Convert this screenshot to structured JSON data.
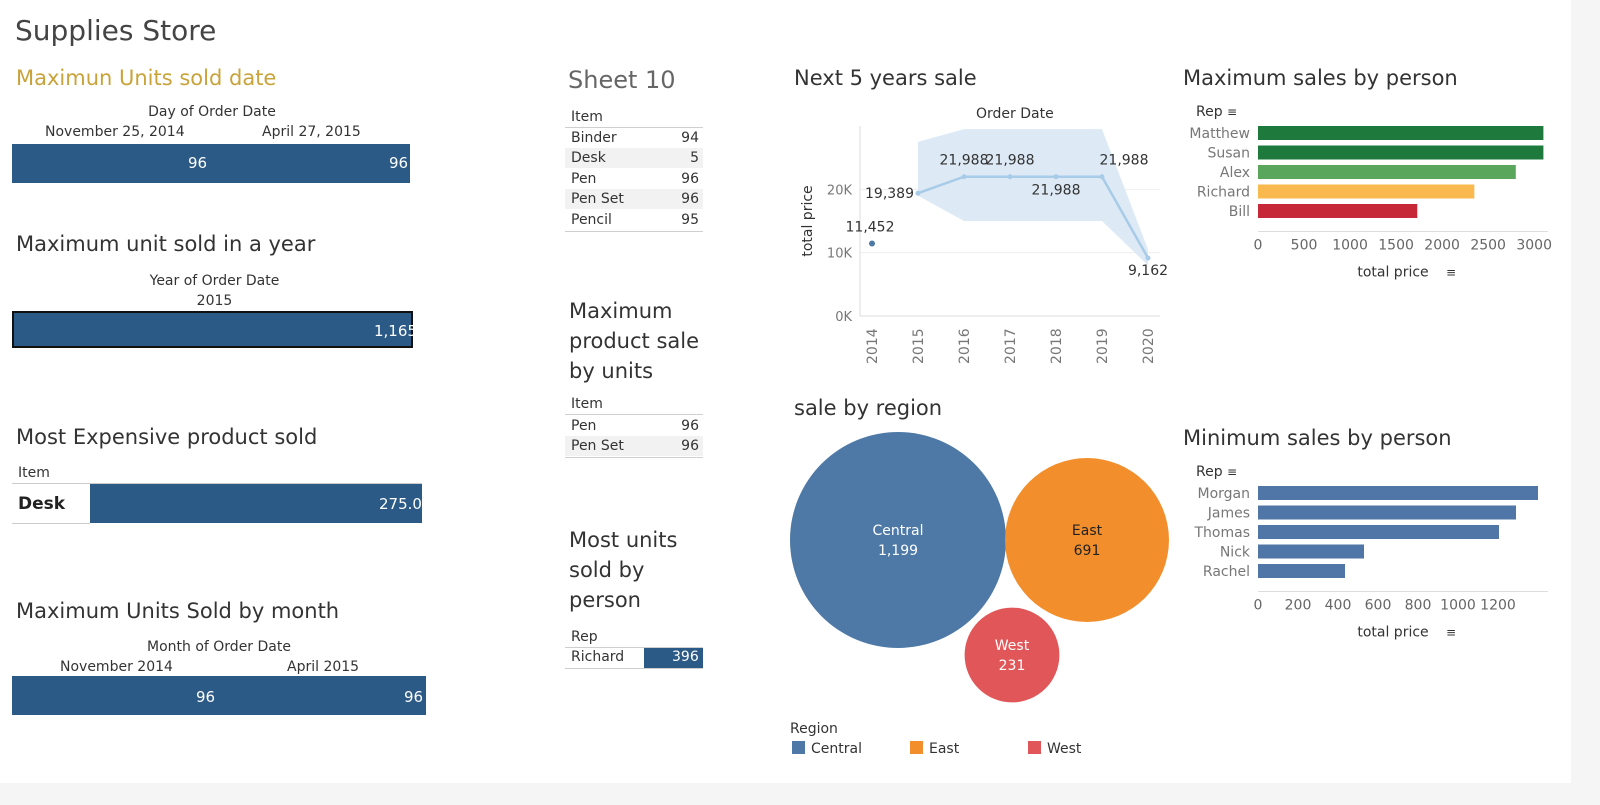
{
  "title": "Supplies Store",
  "units_date": {
    "title": "Maximun Units sold date",
    "header": "Day of Order Date",
    "columns": [
      "November 25, 2014",
      "April 27, 2015"
    ],
    "values": [
      "96",
      "96"
    ]
  },
  "unit_year": {
    "title": "Maximum unit sold in a year",
    "header": "Year of Order Date",
    "column": "2015",
    "value": "1,165"
  },
  "expensive": {
    "title": "Most Expensive product sold",
    "item_header": "Item",
    "item": "Desk",
    "value": "275.0"
  },
  "units_month": {
    "title": "Maximum Units Sold by month",
    "header": "Month of Order Date",
    "columns": [
      "November 2014",
      "April 2015"
    ],
    "values": [
      "96",
      "96"
    ]
  },
  "sheet10": {
    "title": "Sheet 10",
    "header": "Item",
    "rows": [
      {
        "item": "Binder",
        "value": "94"
      },
      {
        "item": "Desk",
        "value": "5"
      },
      {
        "item": "Pen",
        "value": "96"
      },
      {
        "item": "Pen Set",
        "value": "96"
      },
      {
        "item": "Pencil",
        "value": "95"
      }
    ]
  },
  "max_product": {
    "title": [
      "Maximum",
      "product sale",
      "by units"
    ],
    "header": "Item",
    "rows": [
      {
        "item": "Pen",
        "value": "96"
      },
      {
        "item": "Pen Set",
        "value": "96"
      }
    ]
  },
  "most_units": {
    "title": [
      "Most units",
      "sold by",
      "person"
    ],
    "header": "Rep",
    "rep": "Richard",
    "value": "396"
  },
  "chart_data": [
    {
      "type": "line",
      "title": "Next 5 years sale",
      "xlabel": "Order Date",
      "ylabel": "total price",
      "x": [
        "2014",
        "2015",
        "2016",
        "2017",
        "2018",
        "2019",
        "2020"
      ],
      "values": [
        11452,
        19389,
        21988,
        21988,
        21988,
        21988,
        9162
      ],
      "labels": [
        "11,452",
        "19,389",
        "21,988",
        "21,988",
        "21,988",
        "21,988",
        "9,162"
      ],
      "yticks": [
        "0K",
        "10K",
        "20K"
      ],
      "ylim": [
        0,
        30000
      ],
      "forecast_band_upper": [
        null,
        27500,
        29500,
        29500,
        29500,
        29500,
        10500
      ],
      "forecast_band_lower": [
        null,
        19000,
        15000,
        15000,
        15000,
        15000,
        8000
      ],
      "color": "#a8cbe8"
    },
    {
      "type": "bar",
      "title": "Maximum sales by person",
      "xlabel": "total price",
      "ylabel": "Rep",
      "categories": [
        "Matthew",
        "Susan",
        "Alex",
        "Richard",
        "Bill"
      ],
      "values": [
        3100,
        3100,
        2800,
        2350,
        1730
      ],
      "colors": [
        "#1e7a3c",
        "#1e7a3c",
        "#5aa65d",
        "#f9b94e",
        "#c62837"
      ],
      "xticks": [
        "0",
        "500",
        "1000",
        "1500",
        "2000",
        "2500",
        "3000"
      ],
      "xlim": [
        0,
        3150
      ]
    },
    {
      "type": "bubble",
      "title": "sale by region",
      "legend_title": "Region",
      "categories": [
        "Central",
        "East",
        "West"
      ],
      "values": [
        1199,
        691,
        231
      ],
      "labels": [
        "1,199",
        "691",
        "231"
      ],
      "colors": [
        "#4e79a7",
        "#f28e2b",
        "#e15759"
      ]
    },
    {
      "type": "bar",
      "title": "Minimum sales by person",
      "xlabel": "total price",
      "ylabel": "Rep",
      "categories": [
        "Morgan",
        "James",
        "Thomas",
        "Nick",
        "Rachel"
      ],
      "values": [
        1400,
        1290,
        1205,
        530,
        435
      ],
      "colors": [
        "#4f76a6",
        "#4f76a6",
        "#4f76a6",
        "#4f76a6",
        "#4f76a6"
      ],
      "xticks": [
        "0",
        "200",
        "400",
        "600",
        "800",
        "1000",
        "1200"
      ],
      "xlim": [
        0,
        1450
      ]
    }
  ]
}
